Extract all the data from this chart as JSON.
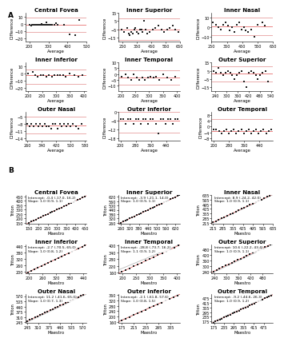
{
  "panel_A_titles": [
    "Central Fovea",
    "Inner Superior",
    "Inner Nasal",
    "Inner Inferior",
    "Inner Temporal",
    "Outer Superior",
    "Outer Nasal",
    "Outer Inferior",
    "Outer Temporal"
  ],
  "panel_B_titles": [
    "Central Fovea",
    "Inner Superior",
    "Inner Nasal",
    "Inner Inferior",
    "Inner Temporal",
    "Outer Superior",
    "Outer Nasal",
    "Outer Inferior",
    "Outer Temporal"
  ],
  "panel_A_xlabel": "Average",
  "panel_A_ylabel": "Difference",
  "panel_B_xlabel": "Maestro",
  "panel_B_ylabel": "Triton",
  "panel_A_label": "A",
  "panel_B_label": "B",
  "panel_A_data": {
    "Central Fovea": {
      "avg": [
        200,
        210,
        215,
        220,
        225,
        230,
        235,
        240,
        245,
        250,
        255,
        260,
        265,
        270,
        275,
        280,
        285,
        290,
        295,
        300,
        305,
        310,
        315,
        320,
        330,
        340,
        350,
        380,
        410,
        440,
        460
      ],
      "diff": [
        -2,
        -3,
        -2,
        -1,
        -2,
        -1,
        -2,
        -1,
        -2,
        -1,
        -2,
        -1,
        0,
        -1,
        -2,
        -1,
        -2,
        2,
        -1,
        -2,
        -1,
        -2,
        -1,
        -1,
        -2,
        1,
        -2,
        -1,
        -15,
        -16,
        5
      ],
      "xlim": [
        180,
        500
      ],
      "ylim": [
        -25,
        15
      ],
      "xticks": [
        200,
        300,
        400,
        500
      ],
      "yticks": [
        -20,
        -10,
        0,
        10
      ],
      "mean_diff": -2.0,
      "loa_upper": 8.0,
      "loa_lower": -12.0
    },
    "Inner Superior": {
      "avg": [
        240,
        260,
        280,
        290,
        300,
        310,
        320,
        330,
        340,
        350,
        360,
        370,
        380,
        390,
        400,
        410,
        420,
        440,
        460,
        480,
        500,
        520,
        540,
        560,
        580,
        600,
        620,
        640
      ],
      "diff": [
        -5,
        -8,
        -3,
        -10,
        -12,
        -8,
        -10,
        -5,
        -3,
        -8,
        -10,
        -5,
        -5,
        -8,
        5,
        -5,
        -10,
        -8,
        -5,
        -3,
        0,
        -5,
        -8,
        -5,
        -3,
        0,
        -5,
        -8
      ],
      "xlim": [
        220,
        650
      ],
      "ylim": [
        -20,
        15
      ],
      "xticks": [
        250,
        350,
        450,
        550,
        650
      ],
      "yticks": [
        -15,
        -5,
        5,
        15
      ],
      "mean_diff": -5.0,
      "loa_upper": 8.0,
      "loa_lower": -18.0
    },
    "Inner Nasal": {
      "avg": [
        260,
        280,
        295,
        310,
        325,
        340,
        355,
        370,
        385,
        400,
        415,
        430,
        445,
        460,
        475,
        490,
        510,
        530,
        550,
        580,
        600
      ],
      "diff": [
        5,
        3,
        0,
        -2,
        3,
        5,
        2,
        -3,
        0,
        -5,
        3,
        5,
        -2,
        0,
        -3,
        -5,
        -2,
        -10,
        3,
        5,
        2
      ],
      "xlim": [
        250,
        650
      ],
      "ylim": [
        -15,
        15
      ],
      "xticks": [
        250,
        350,
        450,
        550,
        650
      ],
      "yticks": [
        -10,
        0,
        10
      ],
      "mean_diff": 1.0,
      "loa_upper": 10.0,
      "loa_lower": -8.0
    },
    "Inner Inferior": {
      "avg": [
        200,
        215,
        225,
        235,
        245,
        255,
        265,
        275,
        285,
        295,
        305,
        315,
        325,
        335,
        350,
        365,
        380,
        395
      ],
      "diff": [
        0,
        2,
        -2,
        -5,
        -2,
        -3,
        -5,
        -3,
        -5,
        -2,
        -2,
        -3,
        -2,
        -5,
        0,
        -3,
        -5,
        -2
      ],
      "xlim": [
        190,
        410
      ],
      "ylim": [
        -25,
        15
      ],
      "xticks": [
        200,
        250,
        300,
        350,
        400
      ],
      "yticks": [
        -20,
        -10,
        0,
        10
      ],
      "mean_diff": -3.0,
      "loa_upper": 5.0,
      "loa_lower": -15.0
    },
    "Inner Temporal": {
      "avg": [
        200,
        215,
        225,
        235,
        245,
        255,
        265,
        275,
        285,
        295,
        305,
        315,
        325,
        335,
        350,
        365,
        380,
        395
      ],
      "diff": [
        -2,
        0,
        -3,
        -5,
        0,
        -3,
        -5,
        -3,
        -5,
        -3,
        -2,
        -3,
        -2,
        -5,
        0,
        -3,
        -5,
        -2
      ],
      "xlim": [
        190,
        410
      ],
      "ylim": [
        -15,
        10
      ],
      "xticks": [
        200,
        250,
        300,
        350,
        400
      ],
      "yticks": [
        -10,
        -5,
        0,
        5,
        10
      ],
      "mean_diff": -3.0,
      "loa_upper": 3.0,
      "loa_lower": -9.0
    },
    "Outer Superior": {
      "avg": [
        230,
        245,
        258,
        270,
        282,
        295,
        308,
        320,
        332,
        345,
        358,
        370,
        382,
        395,
        408,
        420,
        432,
        445,
        458,
        470,
        482,
        495,
        510,
        525
      ],
      "diff": [
        5,
        3,
        8,
        3,
        0,
        3,
        5,
        3,
        0,
        -5,
        0,
        3,
        5,
        -8,
        -15,
        3,
        5,
        3,
        0,
        -5,
        0,
        3,
        5,
        -8
      ],
      "xlim": [
        220,
        550
      ],
      "ylim": [
        -20,
        15
      ],
      "xticks": [
        240,
        300,
        360,
        420,
        480,
        540
      ],
      "yticks": [
        -15,
        -5,
        5,
        15
      ],
      "mean_diff": 2.0,
      "loa_upper": 10.0,
      "loa_lower": -8.0
    },
    "Outer Nasal": {
      "avg": [
        260,
        272,
        284,
        296,
        308,
        320,
        332,
        344,
        356,
        368,
        380,
        392,
        404,
        416,
        428,
        440,
        452,
        464,
        476,
        488,
        500,
        515,
        530,
        545,
        560
      ],
      "diff": [
        -8,
        -9,
        -8,
        -9,
        -8,
        -9,
        -8,
        -9,
        -8,
        -9,
        -9,
        -10,
        -8,
        -8,
        -10,
        -8,
        -9,
        -8,
        -9,
        -8,
        -9,
        -8,
        -9,
        -10,
        -8
      ],
      "xlim": [
        250,
        590
      ],
      "ylim": [
        -15,
        -3
      ],
      "xticks": [
        260,
        340,
        420,
        500,
        580
      ],
      "yticks": [
        -14,
        -11,
        -8,
        -5
      ],
      "mean_diff": -8.5,
      "loa_upper": -5.0,
      "loa_lower": -12.0
    },
    "Outer Inferior": {
      "avg": [
        200,
        215,
        228,
        241,
        254,
        267,
        280,
        293,
        306,
        319,
        332,
        345,
        358,
        371,
        384,
        397,
        410,
        423,
        436,
        449,
        462,
        475,
        488,
        500
      ],
      "diff": [
        -5,
        -5,
        -8,
        -5,
        -5,
        -8,
        -5,
        -5,
        -8,
        -5,
        -5,
        -8,
        -5,
        -5,
        -8,
        -15,
        -5,
        -5,
        -8,
        -5,
        -5,
        -8,
        -5,
        -5
      ],
      "xlim": [
        190,
        510
      ],
      "ylim": [
        -20,
        0
      ],
      "xticks": [
        200,
        280,
        360,
        440
      ],
      "yticks": [
        -18,
        -12,
        -6,
        0
      ],
      "mean_diff": -6.0,
      "loa_upper": 0.0,
      "loa_lower": -14.0
    },
    "Outer Temporal": {
      "avg": [
        200,
        215,
        228,
        241,
        254,
        267,
        280,
        293,
        306,
        319,
        332,
        345,
        358,
        371,
        384,
        397,
        410,
        423,
        436,
        449,
        462,
        475,
        488,
        500
      ],
      "diff": [
        -2,
        -2,
        -3,
        -5,
        -3,
        -2,
        -5,
        -3,
        -2,
        -5,
        -3,
        -2,
        -5,
        -3,
        -2,
        -5,
        -3,
        -2,
        -5,
        -3,
        -2,
        -5,
        -3,
        -2
      ],
      "xlim": [
        190,
        510
      ],
      "ylim": [
        -10,
        10
      ],
      "xticks": [
        200,
        280,
        360,
        440
      ],
      "yticks": [
        -8,
        -4,
        0,
        4,
        8
      ],
      "mean_diff": -3.0,
      "loa_upper": 5.0,
      "loa_lower": -11.0
    }
  },
  "panel_B_data": {
    "Central Fovea": {
      "x": [
        150,
        162,
        175,
        188,
        200,
        213,
        225,
        238,
        250,
        263,
        275,
        288,
        300,
        313,
        325,
        338,
        350,
        363,
        375,
        388,
        400,
        413,
        425,
        438,
        450
      ],
      "y": [
        151,
        163,
        176,
        189,
        201,
        214,
        226,
        239,
        251,
        264,
        276,
        289,
        301,
        314,
        326,
        339,
        351,
        364,
        376,
        389,
        401,
        414,
        426,
        439,
        451
      ],
      "xlim": [
        130,
        460
      ],
      "ylim": [
        140,
        470
      ],
      "xticks": [
        150,
        200,
        250,
        300,
        350,
        400,
        450
      ],
      "yticks": [
        150,
        200,
        250,
        300,
        350,
        400,
        450
      ],
      "intercept": "-0.4 (-17.0, 16.2)",
      "slope": "1.0 (0.9, 1.1)"
    },
    "Inner Superior": {
      "x": [
        260,
        275,
        290,
        305,
        320,
        335,
        350,
        365,
        380,
        395,
        410,
        425,
        440,
        455,
        470,
        485,
        500,
        515,
        530,
        545,
        560,
        575,
        590,
        605,
        620,
        635,
        648
      ],
      "y": [
        257,
        272,
        287,
        302,
        317,
        332,
        347,
        362,
        377,
        392,
        407,
        422,
        437,
        452,
        467,
        482,
        497,
        512,
        527,
        542,
        557,
        572,
        587,
        602,
        617,
        632,
        645
      ],
      "xlim": [
        245,
        650
      ],
      "ylim": [
        245,
        650
      ],
      "xticks": [
        260,
        320,
        380,
        440,
        500,
        560,
        620
      ],
      "yticks": [
        260,
        320,
        380,
        440,
        500,
        560,
        620
      ],
      "intercept": "-3.9 (-21.1, 14.0)",
      "slope": "1.0 (0.9, 1.1)"
    },
    "Inner Nasal": {
      "x": [
        215,
        235,
        255,
        275,
        295,
        315,
        335,
        355,
        375,
        395,
        415,
        435,
        455,
        475,
        495,
        515,
        535,
        555,
        575,
        595,
        615
      ],
      "y": [
        225,
        245,
        264,
        284,
        304,
        324,
        344,
        364,
        384,
        404,
        424,
        444,
        464,
        484,
        504,
        524,
        544,
        564,
        584,
        604,
        624
      ],
      "xlim": [
        205,
        630
      ],
      "ylim": [
        205,
        630
      ],
      "xticks": [
        215,
        285,
        355,
        425,
        495,
        565,
        635
      ],
      "yticks": [
        215,
        285,
        355,
        425,
        495,
        565,
        635
      ],
      "intercept": "8.9 (-24.2, 42.0)",
      "slope": "1.0 (0.9, 1.1)"
    },
    "Inner Inferior": {
      "x": [
        195,
        210,
        225,
        240,
        255,
        270,
        285,
        300,
        315,
        330,
        345,
        360,
        375,
        390,
        405,
        420,
        435,
        448
      ],
      "y": [
        193,
        208,
        223,
        238,
        253,
        268,
        283,
        298,
        313,
        328,
        343,
        358,
        373,
        388,
        403,
        418,
        433,
        446
      ],
      "xlim": [
        185,
        455
      ],
      "ylim": [
        185,
        455
      ],
      "xticks": [
        200,
        260,
        320,
        380,
        440
      ],
      "yticks": [
        200,
        260,
        320,
        380,
        440
      ],
      "intercept": "-2.7 (-70.5, 65.0)",
      "slope": "1.0 (0.8, 1.2)"
    },
    "Inner Temporal": {
      "x": [
        195,
        210,
        225,
        240,
        255,
        270,
        285,
        300,
        315,
        330,
        345,
        360,
        375,
        390,
        405
      ],
      "y": [
        166,
        182,
        199,
        216,
        232,
        249,
        266,
        282,
        299,
        316,
        332,
        349,
        366,
        382,
        399
      ],
      "xlim": [
        185,
        410
      ],
      "ylim": [
        155,
        410
      ],
      "xticks": [
        200,
        250,
        300,
        350,
        400
      ],
      "yticks": [
        160,
        220,
        280,
        340,
        400
      ],
      "intercept": "-28.8 (-73.7, 16.2)",
      "slope": "1.1 (0.9, 1.2)"
    },
    "Outer Superior": {
      "x": [
        235,
        250,
        265,
        280,
        295,
        310,
        325,
        340,
        355,
        370,
        385,
        400,
        415,
        430,
        445,
        460,
        475,
        490,
        505,
        518
      ],
      "y": [
        246,
        261,
        276,
        291,
        306,
        321,
        336,
        351,
        366,
        381,
        396,
        411,
        426,
        441,
        456,
        471,
        486,
        501,
        516,
        529
      ],
      "xlim": [
        225,
        530
      ],
      "ylim": [
        225,
        530
      ],
      "xticks": [
        240,
        300,
        360,
        420,
        480
      ],
      "yticks": [
        240,
        300,
        360,
        420,
        480
      ],
      "intercept": "10.6 (-22.2, 43.4)",
      "slope": "1.0 (0.9, 1.1)"
    },
    "Outer Nasal": {
      "x": [
        245,
        260,
        275,
        290,
        305,
        320,
        335,
        350,
        365,
        380,
        395,
        410,
        425,
        440,
        455,
        470,
        485,
        500,
        515,
        530,
        545,
        560,
        575,
        590
      ],
      "y": [
        258,
        273,
        288,
        303,
        318,
        333,
        348,
        363,
        378,
        393,
        408,
        423,
        438,
        453,
        468,
        483,
        498,
        513,
        528,
        543,
        558,
        573,
        588,
        603
      ],
      "xlim": [
        235,
        595
      ],
      "ylim": [
        235,
        595
      ],
      "xticks": [
        245,
        310,
        375,
        440,
        505,
        570
      ],
      "yticks": [
        245,
        310,
        375,
        440,
        505,
        570
      ],
      "intercept": "11.2 (-41.6, 65.0)",
      "slope": "1.0 (0.7, 1.3)"
    },
    "Outer Inferior": {
      "x": [
        175,
        188,
        201,
        214,
        227,
        240,
        253,
        266,
        279,
        292,
        305,
        318,
        331,
        344,
        357
      ],
      "y": [
        173,
        186,
        199,
        212,
        225,
        238,
        251,
        264,
        277,
        290,
        303,
        316,
        329,
        342,
        355
      ],
      "xlim": [
        165,
        365
      ],
      "ylim": [
        155,
        365
      ],
      "xticks": [
        175,
        215,
        255,
        295,
        335
      ],
      "yticks": [
        160,
        200,
        240,
        280,
        320,
        360
      ],
      "intercept": "-2.1 (-61.8, 57.6)",
      "slope": "1.0 (0.8, 1.5)"
    },
    "Outer Temporal": {
      "x": [
        170,
        183,
        196,
        209,
        222,
        235,
        248,
        261,
        274,
        287,
        300,
        313,
        326,
        339,
        352,
        365,
        378,
        391,
        404,
        417,
        430,
        443,
        456,
        469,
        482,
        495,
        508,
        520
      ],
      "y": [
        161,
        174,
        187,
        200,
        213,
        226,
        239,
        252,
        265,
        278,
        291,
        304,
        317,
        330,
        343,
        356,
        369,
        382,
        395,
        408,
        421,
        434,
        447,
        460,
        473,
        486,
        499,
        511
      ],
      "xlim": [
        160,
        530
      ],
      "ylim": [
        155,
        530
      ],
      "xticks": [
        175,
        235,
        295,
        355,
        415,
        475
      ],
      "yticks": [
        175,
        235,
        295,
        355,
        415,
        475
      ],
      "intercept": "-9.2 (-44.6, 26.3)",
      "slope": "1.0 (0.9, 1.2)"
    }
  },
  "line_color_mean": "#E87070",
  "line_color_loa": "#E8A0A0",
  "scatter_color": "#222222",
  "regression_line_color": "#E87070",
  "identity_line_color": "#BBBBBB",
  "font_size_title": 5.0,
  "font_size_label": 3.8,
  "font_size_tick": 3.5,
  "font_size_annotation": 3.2,
  "marker_size": 1.5
}
